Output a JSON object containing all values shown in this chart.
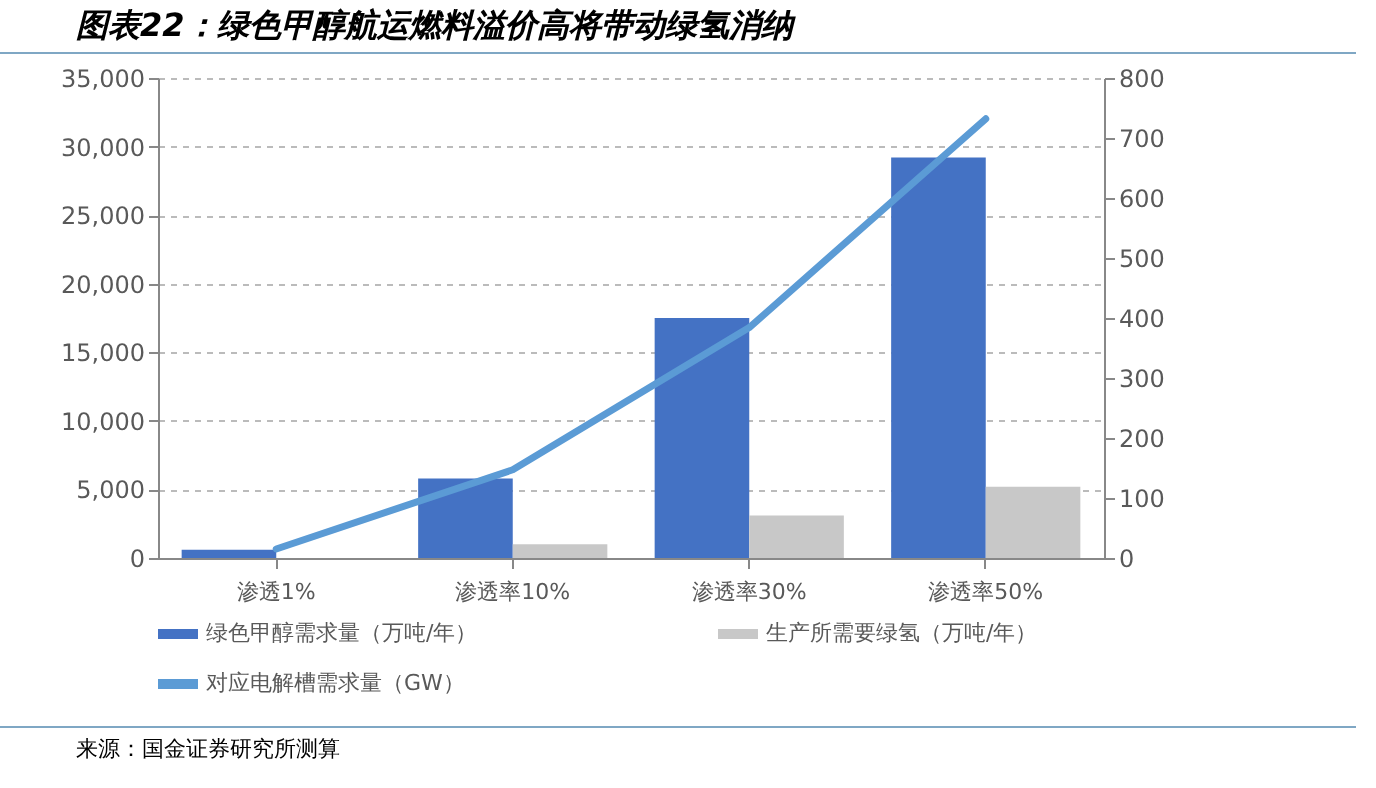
{
  "chart_data": {
    "type": "bar",
    "title": "图表22：绿色甲醇航运燃料溢价高将带动绿氢消纳",
    "categories": [
      "渗透1%",
      "渗透率10%",
      "渗透率30%",
      "渗透率50%"
    ],
    "series": [
      {
        "name": "绿色甲醇需求量（万吨/年）",
        "color": "#4472c4",
        "values": [
          600,
          5800,
          17500,
          29200
        ]
      },
      {
        "name": "生产所需要绿氢（万吨/年）",
        "color": "#c8c8c8",
        "values": [
          null,
          1000,
          3100,
          5200
        ]
      },
      {
        "name": "对应电解槽需求量（GW）",
        "color": "#5b9bd5",
        "type": "line",
        "axis": "y2",
        "values": [
          15,
          147,
          384,
          732
        ]
      }
    ],
    "ylim": [
      0,
      35000
    ],
    "yticks": [
      0,
      {
        "value": 5000,
        "label": "5,000"
      },
      {
        "value": 10000,
        "label": "10,000"
      },
      {
        "value": 15000,
        "label": "15,000"
      },
      {
        "value": 20000,
        "label": "20,000"
      },
      {
        "value": 25000,
        "label": "25,000"
      },
      {
        "value": 30000,
        "label": "30,000"
      },
      {
        "value": 35000,
        "label": "35,000"
      }
    ],
    "y2lim": [
      0,
      800
    ],
    "y2ticks": [
      0,
      100,
      200,
      300,
      400,
      500,
      600,
      700,
      800
    ],
    "grid": "y",
    "legend": "bottom",
    "annotations": [
      "来源：国金证券研究所测算"
    ]
  }
}
